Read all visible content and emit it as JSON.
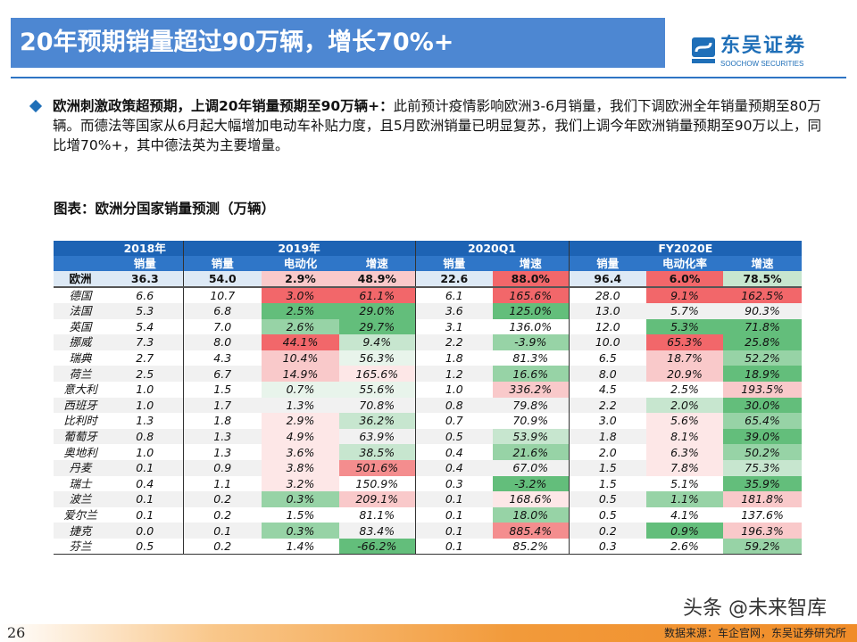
{
  "title": "20年预期销量超过90万辆，增长70%+",
  "logo": {
    "cn": "东吴证券",
    "en": "SOOCHOW SECURITIES",
    "mark": "SCS"
  },
  "bullet": {
    "bold": "欧洲刺激政策超预期，上调20年销量预期至90万辆+：",
    "text": "此前预计疫情影响欧洲3-6月销量，我们下调欧洲全年销量预期至80万辆。而德法等国家从6月起大幅增加电动车补贴力度，且5月欧洲销量已明显复苏，我们上调今年欧洲销量预期至90万以上，同比增70%+，其中德法英为主要增量。"
  },
  "chart_title": "图表：欧洲分国家销量预测（万辆）",
  "table": {
    "groups": [
      "2018年",
      "2019年",
      "2020Q1",
      "FY2020E"
    ],
    "subheaders": [
      "销量",
      "销量",
      "电动化",
      "增速",
      "销量",
      "增速",
      "销量",
      "电动化率",
      "增速"
    ],
    "heat_colors": {
      "r3": "#f2676a",
      "r2": "#f48d8e",
      "r1": "#f9c9ca",
      "r0": "#fde7e7",
      "g3": "#63be7b",
      "g2": "#97d3a6",
      "g1": "#c7e6cf",
      "g0": "#e8f4eb"
    },
    "rows": [
      {
        "name": "欧洲",
        "cells": [
          "36.3",
          "54.0",
          "2.9%",
          "48.9%",
          "22.6",
          "88.0%",
          "96.4",
          "6.0%",
          "78.5%"
        ],
        "heat": [
          "",
          "",
          "r1",
          "r1",
          "",
          "r3",
          "",
          "r3",
          "g1"
        ]
      },
      {
        "name": "德国",
        "cells": [
          "6.6",
          "10.7",
          "3.0%",
          "61.1%",
          "6.1",
          "165.6%",
          "28.0",
          "9.1%",
          "162.5%"
        ],
        "heat": [
          "",
          "",
          "r3",
          "r3",
          "",
          "r3",
          "",
          "r3",
          "r3"
        ]
      },
      {
        "name": "法国",
        "cells": [
          "5.3",
          "6.8",
          "2.5%",
          "29.0%",
          "3.6",
          "125.0%",
          "13.0",
          "5.7%",
          "90.3%"
        ],
        "heat": [
          "",
          "",
          "g3",
          "g3",
          "",
          "g3",
          "",
          "",
          ""
        ]
      },
      {
        "name": "英国",
        "cells": [
          "5.4",
          "7.0",
          "2.6%",
          "29.7%",
          "3.1",
          "136.0%",
          "12.0",
          "5.3%",
          "71.8%"
        ],
        "heat": [
          "",
          "",
          "g2",
          "g3",
          "",
          "",
          "",
          "g3",
          "g3"
        ]
      },
      {
        "name": "挪威",
        "cells": [
          "7.3",
          "8.0",
          "44.1%",
          "9.4%",
          "2.2",
          "-3.9%",
          "10.0",
          "65.3%",
          "25.8%"
        ],
        "heat": [
          "",
          "",
          "r3",
          "g1",
          "",
          "g2",
          "",
          "r3",
          "g3"
        ]
      },
      {
        "name": "瑞典",
        "cells": [
          "2.7",
          "4.3",
          "10.4%",
          "56.3%",
          "1.8",
          "81.3%",
          "6.5",
          "18.7%",
          "52.2%"
        ],
        "heat": [
          "",
          "",
          "r1",
          "g0",
          "",
          "",
          "",
          "r1",
          "g2"
        ]
      },
      {
        "name": "荷兰",
        "cells": [
          "2.5",
          "6.7",
          "14.9%",
          "165.6%",
          "1.2",
          "16.6%",
          "8.0",
          "20.9%",
          "18.9%"
        ],
        "heat": [
          "",
          "",
          "r1",
          "r0",
          "",
          "g2",
          "",
          "r1",
          "g3"
        ]
      },
      {
        "name": "意大利",
        "cells": [
          "1.0",
          "1.5",
          "0.7%",
          "55.6%",
          "1.0",
          "336.2%",
          "4.5",
          "2.5%",
          "193.5%"
        ],
        "heat": [
          "",
          "",
          "g0",
          "g0",
          "",
          "r1",
          "",
          "",
          "r1"
        ]
      },
      {
        "name": "西班牙",
        "cells": [
          "1.0",
          "1.7",
          "1.3%",
          "70.8%",
          "0.8",
          "79.8%",
          "2.2",
          "2.0%",
          "30.0%"
        ],
        "heat": [
          "",
          "",
          "",
          "",
          "",
          "",
          "",
          "g1",
          "g3"
        ]
      },
      {
        "name": "比利时",
        "cells": [
          "1.3",
          "1.8",
          "2.9%",
          "36.2%",
          "0.7",
          "70.9%",
          "3.0",
          "5.6%",
          "65.4%"
        ],
        "heat": [
          "",
          "",
          "r0",
          "g1",
          "",
          "",
          "",
          "r0",
          "g2"
        ]
      },
      {
        "name": "葡萄牙",
        "cells": [
          "0.8",
          "1.3",
          "4.9%",
          "63.9%",
          "0.5",
          "53.9%",
          "1.8",
          "8.1%",
          "39.0%"
        ],
        "heat": [
          "",
          "",
          "r0",
          "",
          "",
          "g1",
          "",
          "r0",
          "g3"
        ]
      },
      {
        "name": "奥地利",
        "cells": [
          "1.0",
          "1.3",
          "3.6%",
          "38.5%",
          "0.4",
          "21.6%",
          "2.0",
          "6.3%",
          "50.2%"
        ],
        "heat": [
          "",
          "",
          "r0",
          "g1",
          "",
          "g2",
          "",
          "r0",
          "g2"
        ]
      },
      {
        "name": "丹麦",
        "cells": [
          "0.1",
          "0.9",
          "3.8%",
          "501.6%",
          "0.4",
          "67.0%",
          "1.5",
          "7.8%",
          "75.3%"
        ],
        "heat": [
          "",
          "",
          "r0",
          "r2",
          "",
          "",
          "",
          "r0",
          "g1"
        ]
      },
      {
        "name": "瑞士",
        "cells": [
          "0.4",
          "1.1",
          "3.2%",
          "150.9%",
          "0.3",
          "-3.2%",
          "1.5",
          "5.1%",
          "35.9%"
        ],
        "heat": [
          "",
          "",
          "r0",
          "",
          "",
          "g3",
          "",
          "",
          "g3"
        ]
      },
      {
        "name": "波兰",
        "cells": [
          "0.1",
          "0.2",
          "0.3%",
          "209.1%",
          "0.1",
          "168.6%",
          "0.5",
          "1.1%",
          "181.8%"
        ],
        "heat": [
          "",
          "",
          "g2",
          "r1",
          "",
          "r0",
          "",
          "g2",
          "r1"
        ]
      },
      {
        "name": "爱尔兰",
        "cells": [
          "0.1",
          "0.2",
          "1.5%",
          "81.1%",
          "0.1",
          "18.0%",
          "0.5",
          "4.1%",
          "137.6%"
        ],
        "heat": [
          "",
          "",
          "",
          "",
          "",
          "g2",
          "",
          "",
          ""
        ]
      },
      {
        "name": "捷克",
        "cells": [
          "0.0",
          "0.1",
          "0.3%",
          "83.4%",
          "0.1",
          "885.4%",
          "0.2",
          "0.9%",
          "196.3%"
        ],
        "heat": [
          "",
          "",
          "g2",
          "",
          "",
          "r2",
          "",
          "g3",
          "r1"
        ]
      },
      {
        "name": "芬兰",
        "cells": [
          "0.5",
          "0.2",
          "1.4%",
          "-66.2%",
          "0.1",
          "85.2%",
          "0.3",
          "2.6%",
          "59.2%"
        ],
        "heat": [
          "",
          "",
          "",
          "g3",
          "",
          "",
          "",
          "",
          "g2"
        ]
      }
    ]
  },
  "watermark": "头条 @未来智库",
  "source": "数据来源：车企官网，东吴证券研究所",
  "page_number": "26"
}
